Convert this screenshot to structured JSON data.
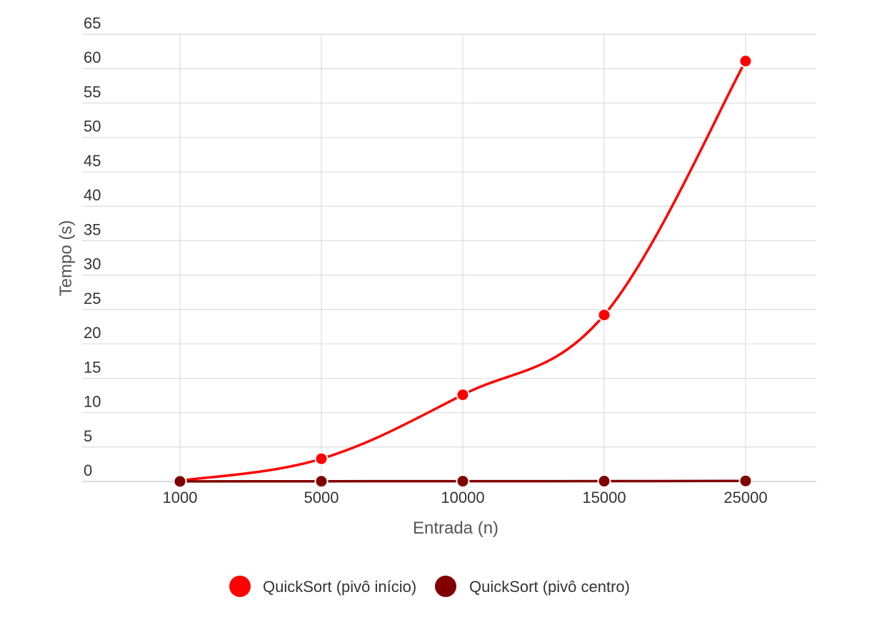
{
  "chart_data": {
    "type": "line",
    "title": "",
    "xlabel": "Entrada (n)",
    "ylabel": "Tempo (s)",
    "categories": [
      "1000",
      "5000",
      "10000",
      "15000",
      "25000"
    ],
    "ylim": [
      0,
      65
    ],
    "yticks": [
      0,
      5,
      10,
      15,
      20,
      25,
      30,
      35,
      40,
      45,
      50,
      55,
      60,
      65
    ],
    "grid": true,
    "smooth": true,
    "legend_position": "bottom",
    "series": [
      {
        "name": "QuickSort (pivô início)",
        "color": "#ff0000",
        "values": [
          0.1,
          3.3,
          12.6,
          24.2,
          61.1
        ]
      },
      {
        "name": "QuickSort (pivô centro)",
        "color": "#800000",
        "values": [
          0.01,
          0.03,
          0.04,
          0.05,
          0.08
        ]
      }
    ]
  }
}
